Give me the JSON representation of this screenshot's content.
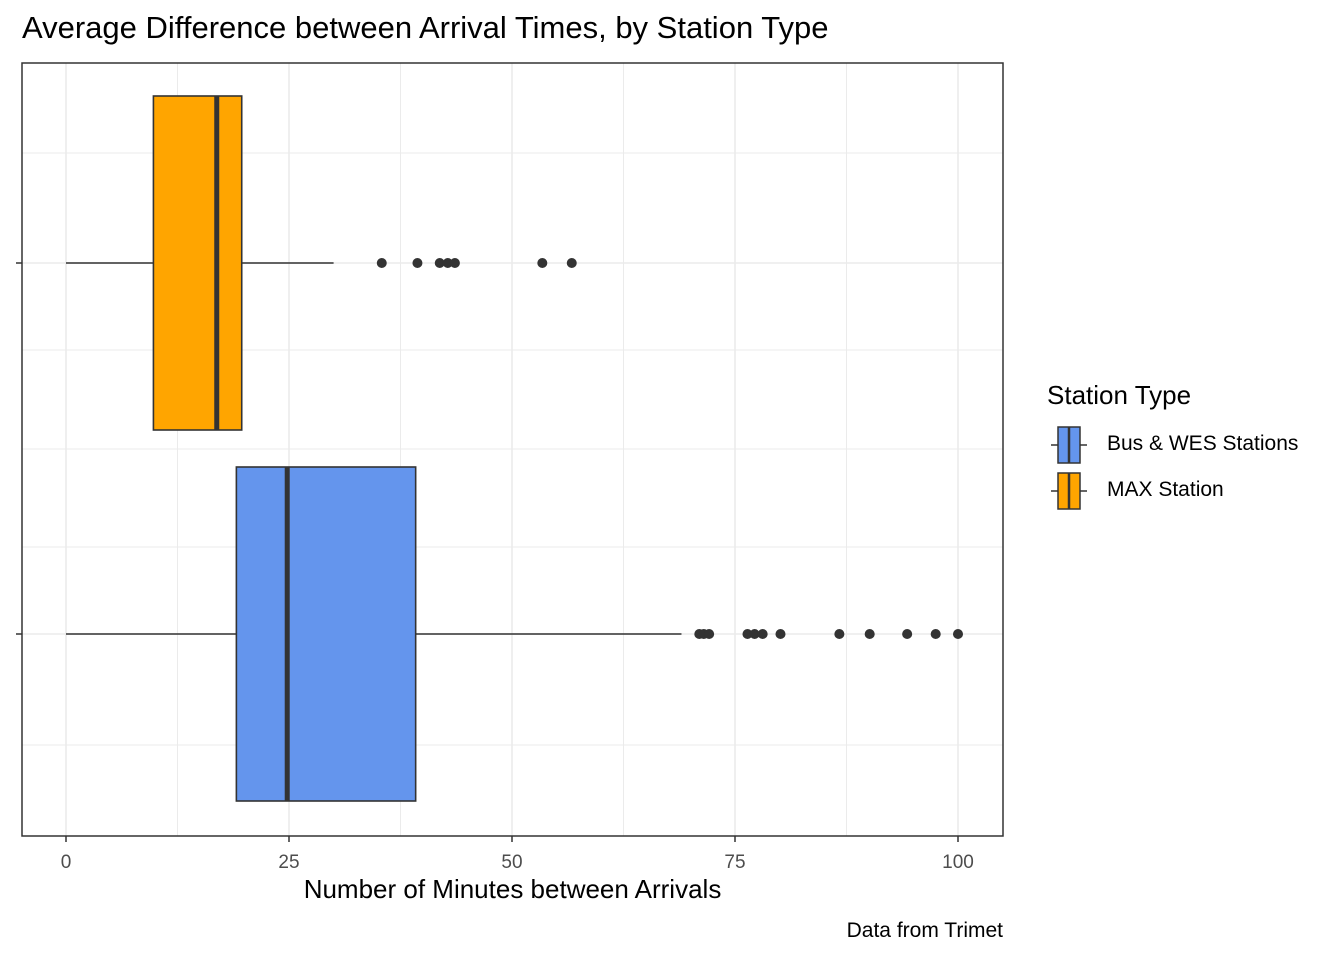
{
  "chart_data": {
    "type": "boxplot",
    "orientation": "horizontal",
    "title": "Average Difference between Arrival Times, by Station Type",
    "xlabel": "Number of Minutes between Arrivals",
    "ylabel": "",
    "caption": "Data from Trimet",
    "xlim": [
      -5,
      105
    ],
    "x_ticks": [
      0,
      25,
      50,
      75,
      100
    ],
    "x_tick_labels": [
      "0",
      "25",
      "50",
      "75",
      "100"
    ],
    "grid": true,
    "legend": {
      "title": "Station Type",
      "placement": "right",
      "entries": [
        "Bus & WES Stations",
        "MAX Station"
      ]
    },
    "series": [
      {
        "name": "MAX Station",
        "color": "#FFA500",
        "min": 0,
        "q1": 9.8,
        "median": 16.9,
        "q3": 19.7,
        "max": 30,
        "outliers": [
          35.4,
          39.4,
          41.9,
          42.8,
          43.6,
          53.4,
          56.7
        ]
      },
      {
        "name": "Bus & WES Stations",
        "color": "#6495ED",
        "min": 0,
        "q1": 19.1,
        "median": 24.8,
        "q3": 39.2,
        "max": 69,
        "outliers": [
          71,
          71.5,
          72.1,
          76.4,
          77.2,
          78.1,
          80.1,
          86.7,
          90.1,
          94.3,
          97.5,
          100
        ]
      }
    ]
  },
  "colors": {
    "box_outline": "#333333",
    "grid": "#ebebeb",
    "panel_border": "#333333"
  }
}
